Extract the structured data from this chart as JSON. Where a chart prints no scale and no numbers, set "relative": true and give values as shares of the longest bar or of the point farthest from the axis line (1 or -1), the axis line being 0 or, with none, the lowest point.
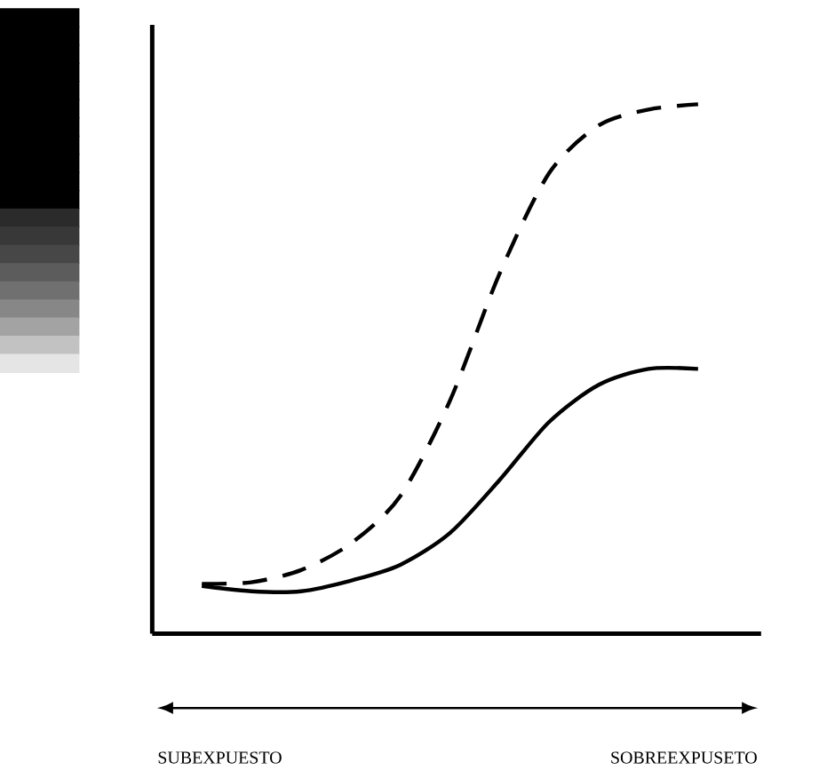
{
  "chart_data": {
    "type": "line",
    "relative": true,
    "categories": [
      null,
      null,
      null,
      null,
      null,
      null,
      null,
      null,
      null,
      null,
      null
    ],
    "series": [
      {
        "color": "#000000",
        "line_style": "dashed",
        "values": [
          0.094,
          0.097,
          0.12,
          0.17,
          0.26,
          0.44,
          0.68,
          0.87,
          0.96,
          0.99,
          1.0
        ]
      },
      {
        "color": "#000000",
        "line_style": "solid",
        "values": [
          0.09,
          0.08,
          0.08,
          0.1,
          0.13,
          0.19,
          0.29,
          0.4,
          0.47,
          0.5,
          0.5
        ]
      }
    ],
    "annotations": [
      "SUBEXPUESTO",
      "SOBREEXPUSETO"
    ],
    "marker": "none"
  }
}
